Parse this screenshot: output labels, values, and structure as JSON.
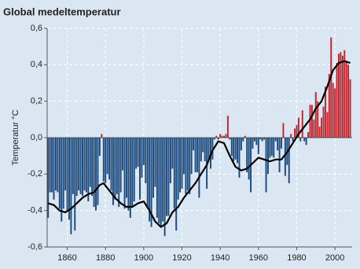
{
  "chart_data": {
    "type": "bar",
    "title": "Global medeltemperatur",
    "y_label": "Temperatur °C",
    "x": [
      1850,
      1851,
      1852,
      1853,
      1854,
      1855,
      1856,
      1857,
      1858,
      1859,
      1860,
      1861,
      1862,
      1863,
      1864,
      1865,
      1866,
      1867,
      1868,
      1869,
      1870,
      1871,
      1872,
      1873,
      1874,
      1875,
      1876,
      1877,
      1878,
      1879,
      1880,
      1881,
      1882,
      1883,
      1884,
      1885,
      1886,
      1887,
      1888,
      1889,
      1890,
      1891,
      1892,
      1893,
      1894,
      1895,
      1896,
      1897,
      1898,
      1899,
      1900,
      1901,
      1902,
      1903,
      1904,
      1905,
      1906,
      1907,
      1908,
      1909,
      1910,
      1911,
      1912,
      1913,
      1914,
      1915,
      1916,
      1917,
      1918,
      1919,
      1920,
      1921,
      1922,
      1923,
      1924,
      1925,
      1926,
      1927,
      1928,
      1929,
      1930,
      1931,
      1932,
      1933,
      1934,
      1935,
      1936,
      1937,
      1938,
      1939,
      1940,
      1941,
      1942,
      1943,
      1944,
      1945,
      1946,
      1947,
      1948,
      1949,
      1950,
      1951,
      1952,
      1953,
      1954,
      1955,
      1956,
      1957,
      1958,
      1959,
      1960,
      1961,
      1962,
      1963,
      1964,
      1965,
      1966,
      1967,
      1968,
      1969,
      1970,
      1971,
      1972,
      1973,
      1974,
      1975,
      1976,
      1977,
      1978,
      1979,
      1980,
      1981,
      1982,
      1983,
      1984,
      1985,
      1986,
      1987,
      1988,
      1989,
      1990,
      1991,
      1992,
      1993,
      1994,
      1995,
      1996,
      1997,
      1998,
      1999,
      2000,
      2001,
      2002,
      2003,
      2004,
      2005,
      2006,
      2007,
      2008
    ],
    "values": [
      -0.44,
      -0.3,
      -0.3,
      -0.34,
      -0.29,
      -0.3,
      -0.39,
      -0.46,
      -0.39,
      -0.29,
      -0.4,
      -0.45,
      -0.53,
      -0.31,
      -0.51,
      -0.32,
      -0.29,
      -0.31,
      -0.32,
      -0.29,
      -0.3,
      -0.35,
      -0.27,
      -0.32,
      -0.38,
      -0.4,
      -0.37,
      -0.1,
      0.02,
      -0.24,
      -0.25,
      -0.2,
      -0.23,
      -0.29,
      -0.37,
      -0.34,
      -0.31,
      -0.38,
      -0.3,
      -0.18,
      -0.39,
      -0.33,
      -0.4,
      -0.44,
      -0.38,
      -0.35,
      -0.17,
      -0.16,
      -0.34,
      -0.22,
      -0.15,
      -0.25,
      -0.38,
      -0.46,
      -0.49,
      -0.33,
      -0.27,
      -0.44,
      -0.47,
      -0.49,
      -0.46,
      -0.54,
      -0.43,
      -0.43,
      -0.25,
      -0.17,
      -0.39,
      -0.51,
      -0.34,
      -0.3,
      -0.28,
      -0.2,
      -0.31,
      -0.29,
      -0.31,
      -0.2,
      -0.07,
      -0.19,
      -0.19,
      -0.33,
      -0.13,
      -0.08,
      -0.13,
      -0.28,
      -0.12,
      -0.17,
      -0.12,
      -0.01,
      0.01,
      -0.01,
      0.02,
      0.01,
      0.01,
      0.02,
      0.12,
      -0.01,
      -0.1,
      -0.13,
      -0.12,
      -0.14,
      -0.22,
      -0.07,
      -0.02,
      0.01,
      -0.19,
      -0.23,
      -0.3,
      -0.06,
      -0.02,
      -0.04,
      -0.09,
      -0.01,
      -0.02,
      -0.01,
      -0.3,
      -0.2,
      -0.11,
      -0.1,
      -0.11,
      -0.02,
      -0.07,
      -0.19,
      -0.06,
      0.08,
      -0.21,
      -0.15,
      -0.25,
      0.02,
      -0.02,
      0.05,
      0.07,
      0.11,
      -0.02,
      0.15,
      -0.02,
      -0.04,
      0.03,
      0.18,
      0.18,
      0.1,
      0.25,
      0.2,
      0.06,
      0.11,
      0.17,
      0.28,
      0.14,
      0.35,
      0.55,
      0.3,
      0.27,
      0.41,
      0.46,
      0.47,
      0.45,
      0.48,
      0.42,
      0.4,
      0.32
    ],
    "positive_color": "#c0262d",
    "negative_color": "#1d4a7c",
    "smoothed": {
      "type": "line",
      "color": "#000000",
      "x": [
        1850,
        1853,
        1856,
        1859,
        1862,
        1865,
        1868,
        1871,
        1874,
        1877,
        1879,
        1882,
        1885,
        1888,
        1891,
        1894,
        1897,
        1900,
        1903,
        1906,
        1909,
        1912,
        1915,
        1918,
        1921,
        1924,
        1927,
        1930,
        1933,
        1936,
        1939,
        1942,
        1945,
        1948,
        1951,
        1954,
        1957,
        1960,
        1963,
        1966,
        1969,
        1972,
        1975,
        1978,
        1981,
        1984,
        1987,
        1990,
        1993,
        1996,
        1999,
        2002,
        2005,
        2008
      ],
      "values": [
        -0.36,
        -0.37,
        -0.4,
        -0.41,
        -0.39,
        -0.36,
        -0.33,
        -0.31,
        -0.3,
        -0.26,
        -0.25,
        -0.29,
        -0.33,
        -0.36,
        -0.38,
        -0.38,
        -0.36,
        -0.35,
        -0.4,
        -0.46,
        -0.49,
        -0.47,
        -0.41,
        -0.38,
        -0.33,
        -0.29,
        -0.25,
        -0.2,
        -0.15,
        -0.07,
        -0.02,
        -0.03,
        -0.1,
        -0.16,
        -0.18,
        -0.17,
        -0.14,
        -0.11,
        -0.12,
        -0.13,
        -0.12,
        -0.12,
        -0.08,
        -0.03,
        0.02,
        0.06,
        0.1,
        0.16,
        0.2,
        0.28,
        0.37,
        0.41,
        0.42,
        0.41
      ]
    },
    "xlim": [
      1849.5,
      2009
    ],
    "xticks": [
      1860,
      1880,
      1900,
      1920,
      1940,
      1960,
      1980,
      2000
    ],
    "ylim": [
      -0.6,
      0.6
    ],
    "yticks": [
      {
        "value": -0.6,
        "label": "-0,6"
      },
      {
        "value": -0.4,
        "label": "-0,4"
      },
      {
        "value": -0.2,
        "label": "-0,2"
      },
      {
        "value": 0,
        "label": "0,0"
      },
      {
        "value": 0.2,
        "label": "0,2"
      },
      {
        "value": 0.4,
        "label": "0,4"
      },
      {
        "value": 0.6,
        "label": "0,6"
      }
    ],
    "grid": true
  }
}
